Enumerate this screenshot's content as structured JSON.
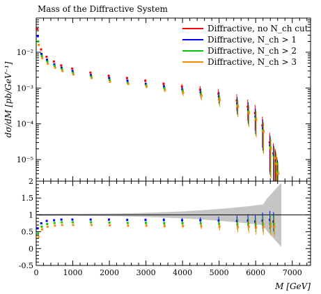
{
  "chart_data": [
    {
      "type": "scatter",
      "panel": "main",
      "title": "Mass of the Diffractive System",
      "xlabel": "",
      "ylabel": "dσ/dM [pb/GeV⁻¹]",
      "yscale": "log",
      "xlim": [
        0,
        7500
      ],
      "ylim": [
        2.5e-06,
        0.09
      ],
      "ytick_labels": [
        "10⁻²",
        "10⁻³",
        "10⁻⁴",
        "10⁻⁵"
      ],
      "ytick_values": [
        0.01,
        0.001,
        0.0001,
        1e-05
      ],
      "legend_placement": "top-right",
      "error_bars": true,
      "series": [
        {
          "name": "Diffractive, no N_ch cut",
          "color": "#ff0000",
          "x": [
            50,
            150,
            300,
            500,
            700,
            1000,
            1500,
            2000,
            2500,
            3000,
            3500,
            4000,
            4500,
            5000,
            5500,
            5800,
            6000,
            6200,
            6400,
            6500,
            6550,
            6600
          ],
          "y": [
            0.045,
            0.012,
            0.0075,
            0.0055,
            0.0043,
            0.0035,
            0.0027,
            0.0022,
            0.0019,
            0.0016,
            0.0013,
            0.0011,
            0.0009,
            0.0007,
            0.00045,
            0.0003,
            0.0002,
            9e-05,
            3e-05,
            1.5e-05,
            1e-05,
            6e-06
          ]
        },
        {
          "name": "Diffractive, N_ch > 1",
          "color": "#0000ff",
          "x": [
            50,
            150,
            300,
            500,
            700,
            1000,
            1500,
            2000,
            2500,
            3000,
            3500,
            4000,
            4500,
            5000,
            5500,
            5800,
            6000,
            6200,
            6400,
            6500,
            6550,
            6600
          ],
          "y": [
            0.028,
            0.009,
            0.0062,
            0.0046,
            0.0037,
            0.003,
            0.0023,
            0.0019,
            0.0016,
            0.0013,
            0.0011,
            0.00092,
            0.00075,
            0.00058,
            0.00037,
            0.00025,
            0.00016,
            7.5e-05,
            2.5e-05,
            1.3e-05,
            9e-06,
            5e-06
          ]
        },
        {
          "name": "Diffractive, N_ch > 2",
          "color": "#00cc00",
          "x": [
            50,
            150,
            300,
            500,
            700,
            1000,
            1500,
            2000,
            2500,
            3000,
            3500,
            4000,
            4500,
            5000,
            5500,
            5800,
            6000,
            6200,
            6400,
            6500,
            6550,
            6600
          ],
          "y": [
            0.02,
            0.0078,
            0.0055,
            0.0042,
            0.0034,
            0.0027,
            0.0021,
            0.0017,
            0.0014,
            0.0012,
            0.00098,
            0.00082,
            0.00067,
            0.00052,
            0.00033,
            0.00022,
            0.00014,
            6.5e-05,
            2.2e-05,
            1.2e-05,
            8e-06,
            4.5e-06
          ]
        },
        {
          "name": "Diffractive, N_ch > 3",
          "color": "#ff8800",
          "x": [
            50,
            150,
            300,
            500,
            700,
            1000,
            1500,
            2000,
            2500,
            3000,
            3500,
            4000,
            4500,
            5000,
            5500,
            5800,
            6000,
            6200,
            6400,
            6500,
            6550,
            6600
          ],
          "y": [
            0.016,
            0.0068,
            0.0048,
            0.0037,
            0.003,
            0.0024,
            0.0019,
            0.0015,
            0.0013,
            0.0011,
            0.00088,
            0.00073,
            0.0006,
            0.00046,
            0.0003,
            0.0002,
            0.00013,
            6e-05,
            2e-05,
            1.1e-05,
            7.5e-06,
            4e-06
          ]
        }
      ]
    },
    {
      "type": "scatter",
      "panel": "ratio",
      "title": "",
      "xlabel": "M [GeV]",
      "ylabel": "",
      "xlim": [
        0,
        7500
      ],
      "ylim": [
        -0.5,
        2
      ],
      "xtick_labels": [
        "0",
        "1000",
        "2000",
        "3000",
        "4000",
        "5000",
        "6000",
        "7000"
      ],
      "xtick_values": [
        0,
        1000,
        2000,
        3000,
        4000,
        5000,
        6000,
        7000
      ],
      "ytick_labels": [
        "2",
        "1.5",
        "1",
        "0.5",
        "0",
        "-0.5"
      ],
      "ytick_values": [
        2,
        1.5,
        1,
        0.5,
        0,
        -0.5
      ],
      "reference_line": 1,
      "reference_band_color": "#bbbbbb",
      "series": [
        {
          "name": "Diffractive, N_ch > 1",
          "color": "#0000ff",
          "x": [
            50,
            150,
            300,
            500,
            700,
            1000,
            1500,
            2000,
            2500,
            3000,
            3500,
            4000,
            4500,
            5000,
            5500,
            5800,
            6000,
            6200,
            6400,
            6500
          ],
          "y": [
            0.6,
            0.75,
            0.82,
            0.84,
            0.86,
            0.86,
            0.86,
            0.86,
            0.85,
            0.85,
            0.85,
            0.84,
            0.84,
            0.83,
            0.82,
            0.83,
            0.8,
            0.83,
            0.85,
            0.8
          ]
        },
        {
          "name": "Diffractive, N_ch > 2",
          "color": "#00cc00",
          "x": [
            50,
            150,
            300,
            500,
            700,
            1000,
            1500,
            2000,
            2500,
            3000,
            3500,
            4000,
            4500,
            5000,
            5500,
            5800,
            6000,
            6200,
            6400,
            6500
          ],
          "y": [
            0.45,
            0.65,
            0.73,
            0.76,
            0.78,
            0.78,
            0.78,
            0.77,
            0.76,
            0.76,
            0.75,
            0.75,
            0.74,
            0.73,
            0.72,
            0.73,
            0.7,
            0.72,
            0.74,
            0.72
          ]
        },
        {
          "name": "Diffractive, N_ch > 3",
          "color": "#ff8800",
          "x": [
            50,
            150,
            300,
            500,
            700,
            1000,
            1500,
            2000,
            2500,
            3000,
            3500,
            4000,
            4500,
            5000,
            5500,
            5800,
            6000,
            6200,
            6400,
            6500
          ],
          "y": [
            0.35,
            0.57,
            0.65,
            0.68,
            0.7,
            0.7,
            0.7,
            0.69,
            0.68,
            0.68,
            0.67,
            0.67,
            0.66,
            0.65,
            0.64,
            0.65,
            0.62,
            0.64,
            0.66,
            0.64
          ]
        }
      ]
    }
  ]
}
